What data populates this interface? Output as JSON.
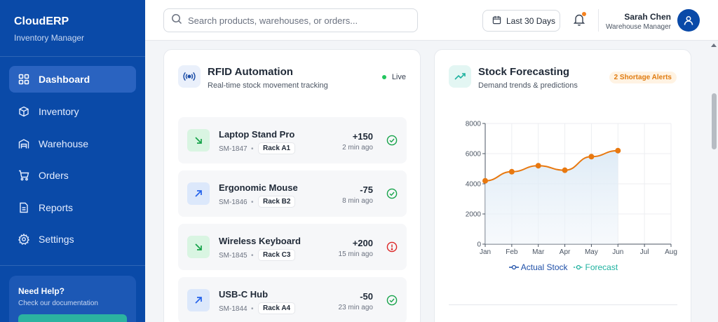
{
  "sidebar": {
    "brand": "CloudERP",
    "brand_sub": "Inventory Manager",
    "items": [
      {
        "label": "Dashboard",
        "icon": "dashboard-icon",
        "active": true
      },
      {
        "label": "Inventory",
        "icon": "box-icon"
      },
      {
        "label": "Warehouse",
        "icon": "warehouse-icon"
      },
      {
        "label": "Orders",
        "icon": "cart-icon"
      },
      {
        "label": "Reports",
        "icon": "report-icon"
      },
      {
        "label": "Settings",
        "icon": "gear-icon"
      }
    ],
    "help": {
      "title": "Need Help?",
      "subtitle": "Check our documentation"
    }
  },
  "header": {
    "search_placeholder": "Search products, warehouses, or orders...",
    "date_range": "Last 30 Days",
    "user_name": "Sarah Chen",
    "user_role": "Warehouse Manager"
  },
  "rfid": {
    "title": "RFID Automation",
    "subtitle": "Real-time stock movement tracking",
    "status": "Live",
    "items": [
      {
        "name": "Laptop Stand Pro",
        "sku": "SM-1847",
        "rack": "Rack A1",
        "qty": "+150",
        "ago": "2 min ago",
        "direction": "in",
        "state": "ok"
      },
      {
        "name": "Ergonomic Mouse",
        "sku": "SM-1846",
        "rack": "Rack B2",
        "qty": "-75",
        "ago": "8 min ago",
        "direction": "out",
        "state": "ok"
      },
      {
        "name": "Wireless Keyboard",
        "sku": "SM-1845",
        "rack": "Rack C3",
        "qty": "+200",
        "ago": "15 min ago",
        "direction": "in",
        "state": "alert"
      },
      {
        "name": "USB-C Hub",
        "sku": "SM-1844",
        "rack": "Rack A4",
        "qty": "-50",
        "ago": "23 min ago",
        "direction": "out",
        "state": "ok"
      }
    ]
  },
  "forecast": {
    "title": "Stock Forecasting",
    "subtitle": "Demand trends & predictions",
    "badge": "2 Shortage Alerts",
    "legend": [
      "Actual Stock",
      "Forecast"
    ]
  },
  "colors": {
    "sidebar": "#0a4aa8",
    "actual": "#e8780f",
    "legend_actual": "#1e4fa8",
    "legend_forecast": "#20b2a0",
    "in": "#16a34a",
    "out": "#2563eb",
    "alert": "#dc2626"
  },
  "chart_data": {
    "type": "line",
    "categories": [
      "Jan",
      "Feb",
      "Mar",
      "Apr",
      "May",
      "Jun",
      "Jul",
      "Aug"
    ],
    "series": [
      {
        "name": "Actual Stock",
        "values": [
          4200,
          4800,
          5200,
          4900,
          5800,
          6200,
          null,
          null
        ]
      },
      {
        "name": "Forecast",
        "values": [
          null,
          null,
          null,
          null,
          null,
          null,
          null,
          null
        ]
      }
    ],
    "yticks": [
      0,
      2000,
      4000,
      6000,
      8000
    ],
    "ylim": [
      0,
      8000
    ],
    "grid": true,
    "legend_position": "bottom"
  }
}
